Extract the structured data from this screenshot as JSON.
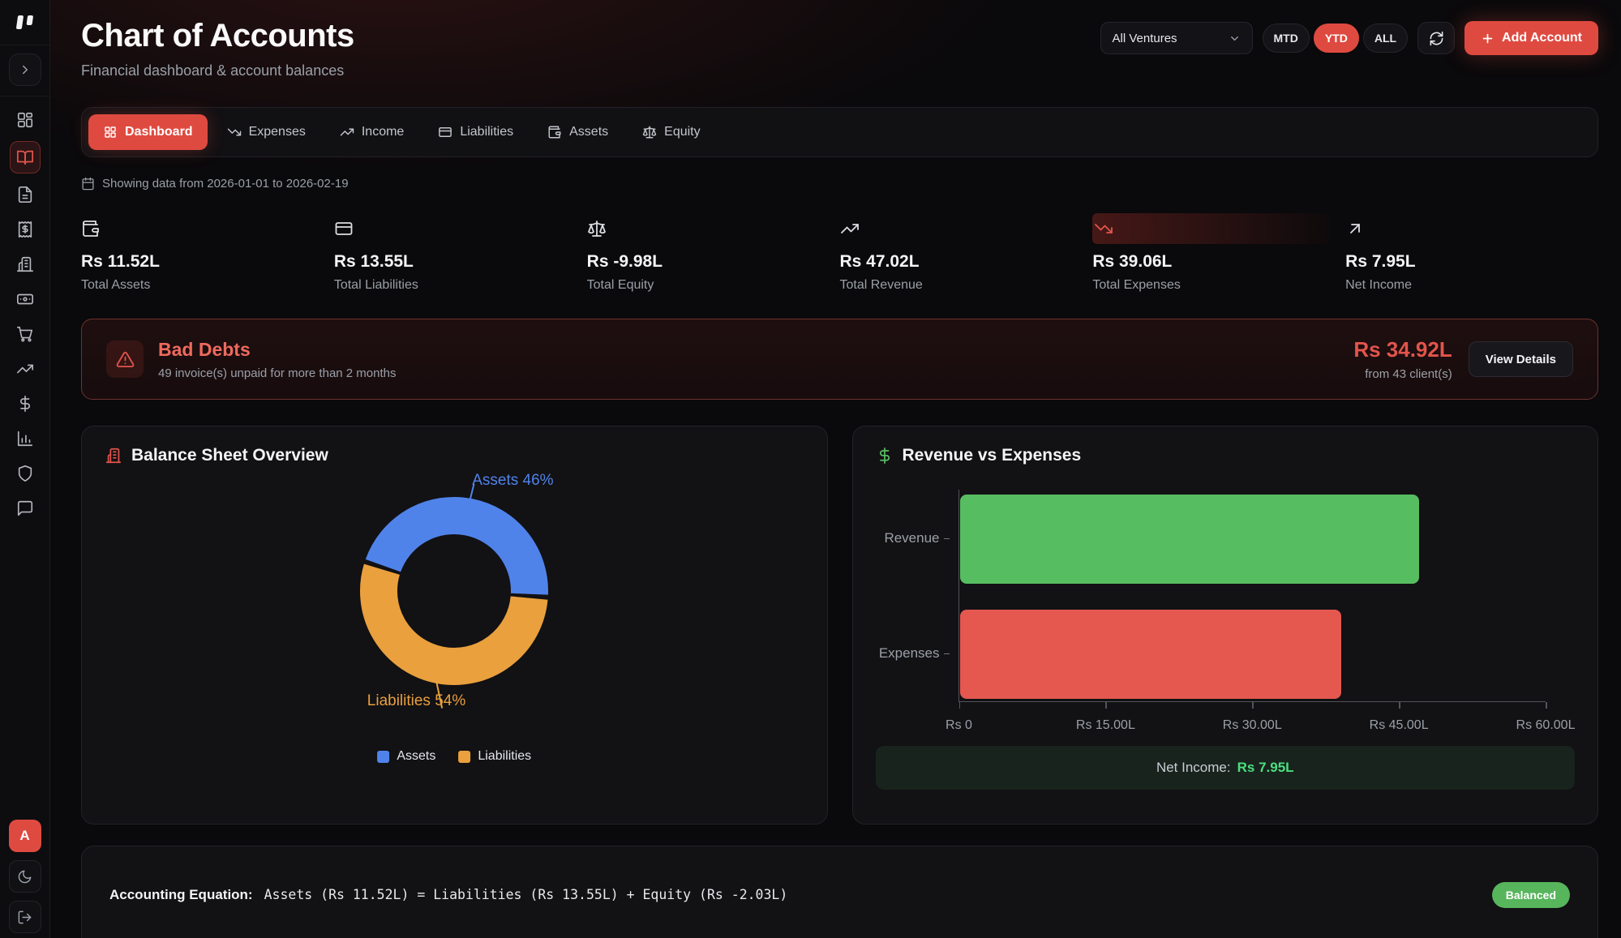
{
  "header": {
    "title": "Chart of Accounts",
    "subtitle": "Financial dashboard & account balances"
  },
  "controls": {
    "venture_filter": "All Ventures",
    "ranges": [
      "MTD",
      "YTD",
      "ALL"
    ],
    "active_range": "YTD",
    "add_account_label": "Add Account"
  },
  "tabs": [
    {
      "label": "Dashboard",
      "icon": "layout-grid-icon",
      "active": true
    },
    {
      "label": "Expenses",
      "icon": "trending-down-icon",
      "active": false
    },
    {
      "label": "Income",
      "icon": "trending-up-icon",
      "active": false
    },
    {
      "label": "Liabilities",
      "icon": "credit-card-icon",
      "active": false
    },
    {
      "label": "Assets",
      "icon": "wallet-icon",
      "active": false
    },
    {
      "label": "Equity",
      "icon": "scale-icon",
      "active": false
    }
  ],
  "filters": {
    "date_note": "Showing data from 2026-01-01 to 2026-02-19"
  },
  "stats": [
    {
      "value": "Rs 11.52L",
      "label": "Total Assets",
      "icon": "wallet-icon"
    },
    {
      "value": "Rs 13.55L",
      "label": "Total Liabilities",
      "icon": "credit-card-icon"
    },
    {
      "value": "Rs -9.98L",
      "label": "Total Equity",
      "icon": "scale-icon"
    },
    {
      "value": "Rs 47.02L",
      "label": "Total Revenue",
      "icon": "trending-up-icon"
    },
    {
      "value": "Rs 39.06L",
      "label": "Total Expenses",
      "icon": "trending-down-icon",
      "highlighted": true
    },
    {
      "value": "Rs 7.95L",
      "label": "Net Income",
      "icon": "arrow-up-right-icon"
    }
  ],
  "bad_debts": {
    "title": "Bad Debts",
    "description": "49 invoice(s) unpaid for more than 2 months",
    "amount": "Rs 34.92L",
    "source": "from 43 client(s)",
    "button_label": "View Details"
  },
  "cards": {
    "balance_sheet": {
      "title": "Balance Sheet Overview",
      "callouts": [
        "Assets 46%",
        "Liabilities 54%"
      ]
    },
    "revenue_expenses": {
      "title": "Revenue vs Expenses",
      "net_income_label": "Net Income:",
      "net_income_value": "Rs 7.95L"
    }
  },
  "chart_data": [
    {
      "type": "pie",
      "subtype": "donut",
      "title": "Balance Sheet Overview",
      "labels": [
        "Assets",
        "Liabilities"
      ],
      "values": [
        46,
        54
      ],
      "unit": "%",
      "colors": [
        "#5083ea",
        "#e9a03d"
      ],
      "legend_position": "bottom"
    },
    {
      "type": "bar",
      "orientation": "horizontal",
      "title": "Revenue vs Expenses",
      "categories": [
        "Revenue",
        "Expenses"
      ],
      "values": [
        47.02,
        39.06
      ],
      "value_unit": "Rs Lakh",
      "colors": [
        "#57bd61",
        "#e4584f"
      ],
      "xlim": [
        0,
        60
      ],
      "x_ticks": [
        "Rs 0",
        "Rs 15.00L",
        "Rs 30.00L",
        "Rs 45.00L",
        "Rs 60.00L"
      ],
      "grid": false,
      "annotation": "Net Income: Rs 7.95L"
    }
  ],
  "equation": {
    "label": "Accounting Equation:",
    "formula": "Assets (Rs 11.52L) = Liabilities (Rs 13.55L) + Equity (Rs -2.03L)",
    "badge": "Balanced"
  },
  "sidebar_icons": [
    "layout-dashboard-icon",
    "book-open-icon",
    "file-text-icon",
    "receipt-icon",
    "building-icon",
    "banknote-icon",
    "shopping-cart-icon",
    "trending-up-icon",
    "dollar-sign-icon",
    "bar-chart-icon",
    "shield-icon",
    "message-square-icon"
  ],
  "user": {
    "avatar_initial": "A"
  },
  "colors": {
    "accent": "#df4a40",
    "bar_green": "#57bd61",
    "bar_red": "#e4584f",
    "donut_blue": "#5083ea",
    "donut_orange": "#e9a03d",
    "net_income_green": "#4ade80",
    "balanced_badge": "#57b55c",
    "card_bg": "#121114",
    "page_bg": "#0a090b",
    "muted_text": "#9aa0a8"
  }
}
